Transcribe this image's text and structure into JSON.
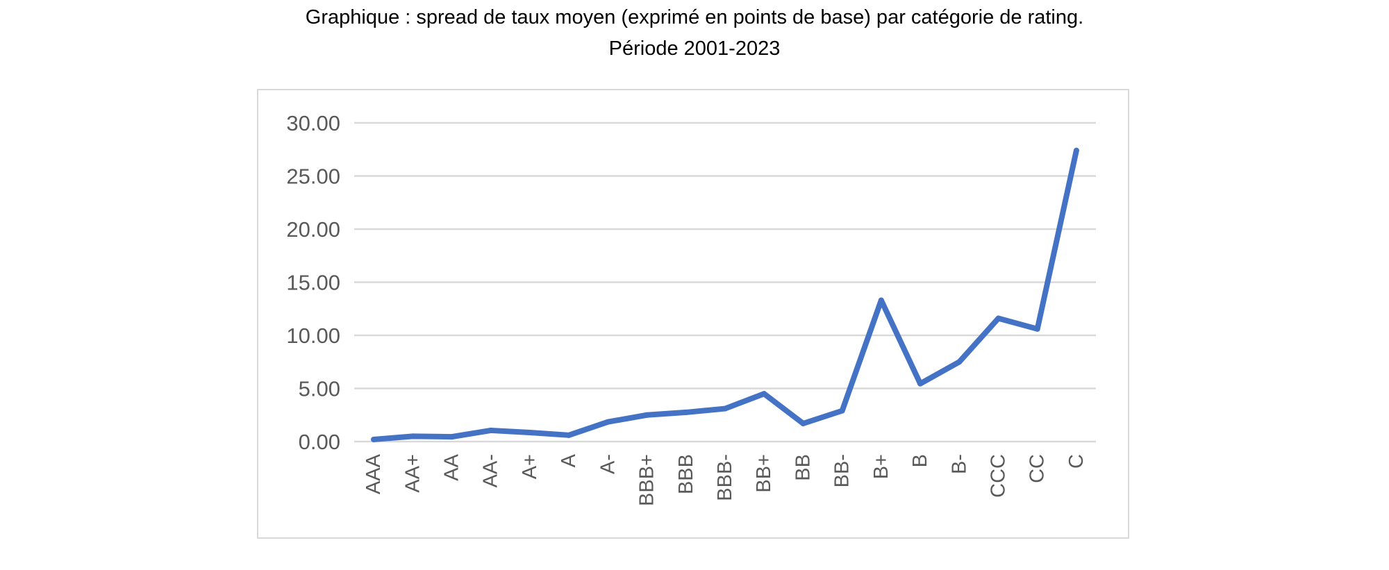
{
  "title": "Graphique : spread de taux moyen (exprimé en points de base) par catégorie de rating.",
  "subtitle": "Période 2001-2023",
  "colors": {
    "series": "#4472c4",
    "grid": "#d9d9d9",
    "tick_text": "#595959",
    "frame": "#d9d9d9"
  },
  "chart_data": {
    "type": "line",
    "title": "Graphique : spread de taux moyen (exprimé en points de base) par catégorie de rating.",
    "subtitle": "Période 2001-2023",
    "xlabel": "",
    "ylabel": "",
    "categories": [
      "AAA",
      "AA+",
      "AA",
      "AA-",
      "A+",
      "A",
      "A-",
      "BBB+",
      "BBB",
      "BBB-",
      "BB+",
      "BB",
      "BB-",
      "B+",
      "B",
      "B-",
      "CCC",
      "CC",
      "C"
    ],
    "series": [
      {
        "values": [
          0.2,
          0.5,
          0.45,
          1.05,
          0.85,
          0.6,
          1.85,
          2.5,
          2.75,
          3.1,
          4.5,
          1.7,
          2.9,
          13.3,
          5.45,
          7.5,
          11.6,
          10.6,
          27.4
        ]
      }
    ],
    "ylim": [
      0,
      30
    ],
    "yticks": [
      "0.00",
      "5.00",
      "10.00",
      "15.00",
      "20.00",
      "25.00",
      "30.00"
    ],
    "ytick_values": [
      0,
      5,
      10,
      15,
      20,
      25,
      30
    ],
    "grid": true,
    "legend": "none"
  }
}
